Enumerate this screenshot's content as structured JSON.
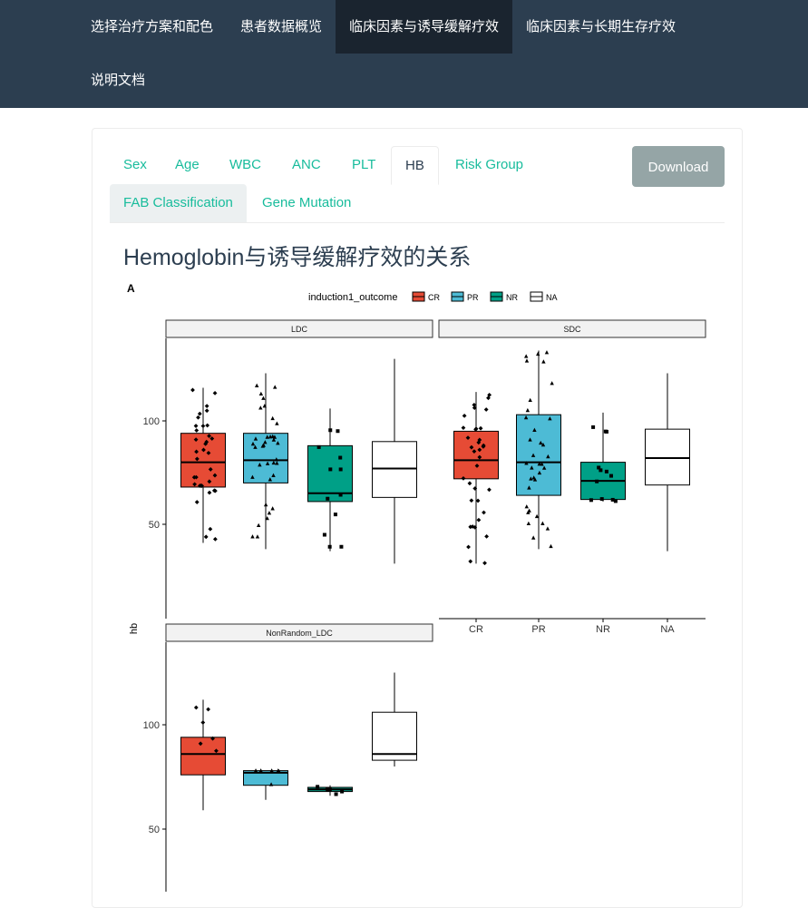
{
  "nav": {
    "items": [
      {
        "label": "选择治疗方案和配色"
      },
      {
        "label": "患者数据概览"
      },
      {
        "label": "临床因素与诱导缓解疗效",
        "active": true
      },
      {
        "label": "临床因素与长期生存疗效"
      },
      {
        "label": "说明文档"
      }
    ]
  },
  "tabs": {
    "items": [
      {
        "label": "Sex"
      },
      {
        "label": "Age"
      },
      {
        "label": "WBC"
      },
      {
        "label": "ANC"
      },
      {
        "label": "PLT"
      },
      {
        "label": "HB",
        "active": true
      },
      {
        "label": "Risk Group"
      },
      {
        "label": "FAB Classification",
        "highlighted": true
      },
      {
        "label": "Gene Mutation"
      }
    ],
    "download_label": "Download"
  },
  "page_title": "Hemoglobin与诱导缓解疗效的关系",
  "plot": {
    "panel_tag": "A",
    "legend_title": "induction1_outcome",
    "ylabel": "hb",
    "colors": {
      "CR": "#e64b35",
      "PR": "#4dbbd5",
      "NR": "#00a087",
      "NA": "#ffffff"
    }
  },
  "chart_data": {
    "type": "box",
    "y_axis_label": "hb",
    "legend": {
      "title": "induction1_outcome",
      "entries": [
        "CR",
        "PR",
        "NR",
        "NA"
      ],
      "placement": "top"
    },
    "categories": [
      "CR",
      "PR",
      "NR",
      "NA"
    ],
    "y_ticks": [
      50,
      100
    ],
    "panels": [
      {
        "name": "LDC",
        "boxes": [
          {
            "group": "CR",
            "min": 41,
            "q1": 68,
            "median": 80,
            "q3": 94,
            "max": 116
          },
          {
            "group": "PR",
            "min": 38,
            "q1": 70,
            "median": 81,
            "q3": 94,
            "max": 123
          },
          {
            "group": "NR",
            "min": 37,
            "q1": 61,
            "median": 65,
            "q3": 88,
            "max": 106
          },
          {
            "group": "NA",
            "min": 31,
            "q1": 63,
            "median": 77,
            "q3": 90,
            "max": 130
          }
        ]
      },
      {
        "name": "SDC",
        "boxes": [
          {
            "group": "CR",
            "min": 31,
            "q1": 72,
            "median": 81,
            "q3": 95,
            "max": 114
          },
          {
            "group": "PR",
            "min": 38,
            "q1": 64,
            "median": 80,
            "q3": 103,
            "max": 134
          },
          {
            "group": "NR",
            "min": 61,
            "q1": 62,
            "median": 71,
            "q3": 80,
            "max": 104
          },
          {
            "group": "NA",
            "min": 37,
            "q1": 69,
            "median": 82,
            "q3": 96,
            "max": 123
          }
        ]
      },
      {
        "name": "NonRandom_LDC",
        "boxes": [
          {
            "group": "CR",
            "min": 59,
            "q1": 76,
            "median": 86,
            "q3": 94,
            "max": 112
          },
          {
            "group": "PR",
            "min": 64,
            "q1": 71,
            "median": 77,
            "q3": 78,
            "max": 78
          },
          {
            "group": "NR",
            "min": 66,
            "q1": 68,
            "median": 69,
            "q3": 70,
            "max": 71
          },
          {
            "group": "NA",
            "min": 80,
            "q1": 83,
            "median": 86,
            "q3": 106,
            "max": 125
          }
        ]
      }
    ]
  }
}
